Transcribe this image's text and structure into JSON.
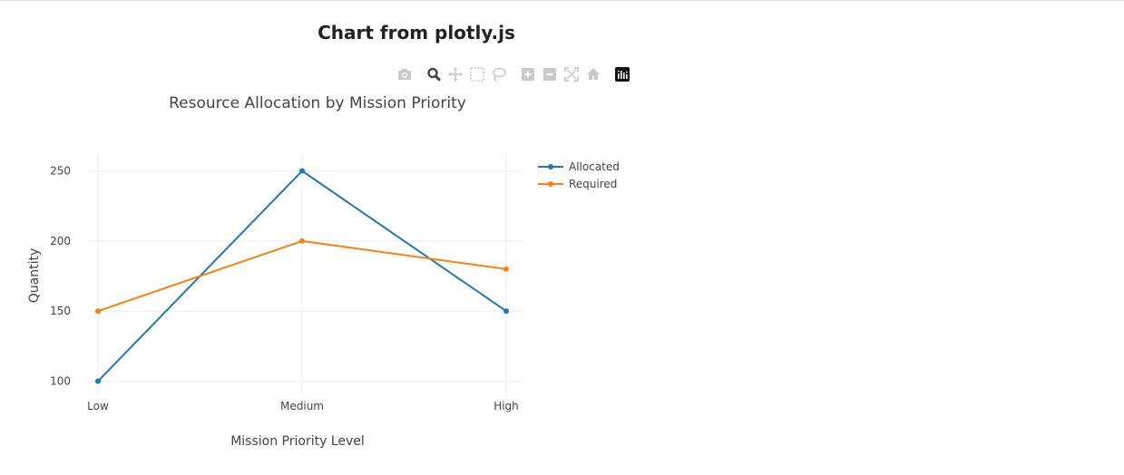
{
  "page": {
    "heading": "Chart from plotly.js"
  },
  "modebar": {
    "buttons": [
      {
        "name": "camera-icon",
        "active": false
      },
      {
        "name": "zoom-icon",
        "active": true
      },
      {
        "name": "pan-icon",
        "active": false
      },
      {
        "name": "box-select-icon",
        "active": false
      },
      {
        "name": "lasso-select-icon",
        "active": false
      },
      {
        "name": "zoom-in-icon",
        "active": false
      },
      {
        "name": "zoom-out-icon",
        "active": false
      },
      {
        "name": "autoscale-icon",
        "active": false
      },
      {
        "name": "reset-axes-icon",
        "active": false
      },
      {
        "name": "plotly-logo-icon",
        "active": false
      }
    ],
    "icon_color": "#c9c9c9",
    "active_color": "#444444"
  },
  "chart_data": {
    "type": "line",
    "title": "Resource Allocation by Mission Priority",
    "xlabel": "Mission Priority Level",
    "ylabel": "Quantity",
    "categories": [
      "Low",
      "Medium",
      "High"
    ],
    "ylim": [
      90,
      262
    ],
    "yticks": [
      100,
      150,
      200,
      250
    ],
    "grid": true,
    "legend_position": "top-right",
    "series": [
      {
        "name": "Allocated",
        "values": [
          100,
          250,
          150
        ],
        "color": "#1f77b4"
      },
      {
        "name": "Required",
        "values": [
          150,
          200,
          180
        ],
        "color": "#ff7f0e"
      }
    ]
  }
}
